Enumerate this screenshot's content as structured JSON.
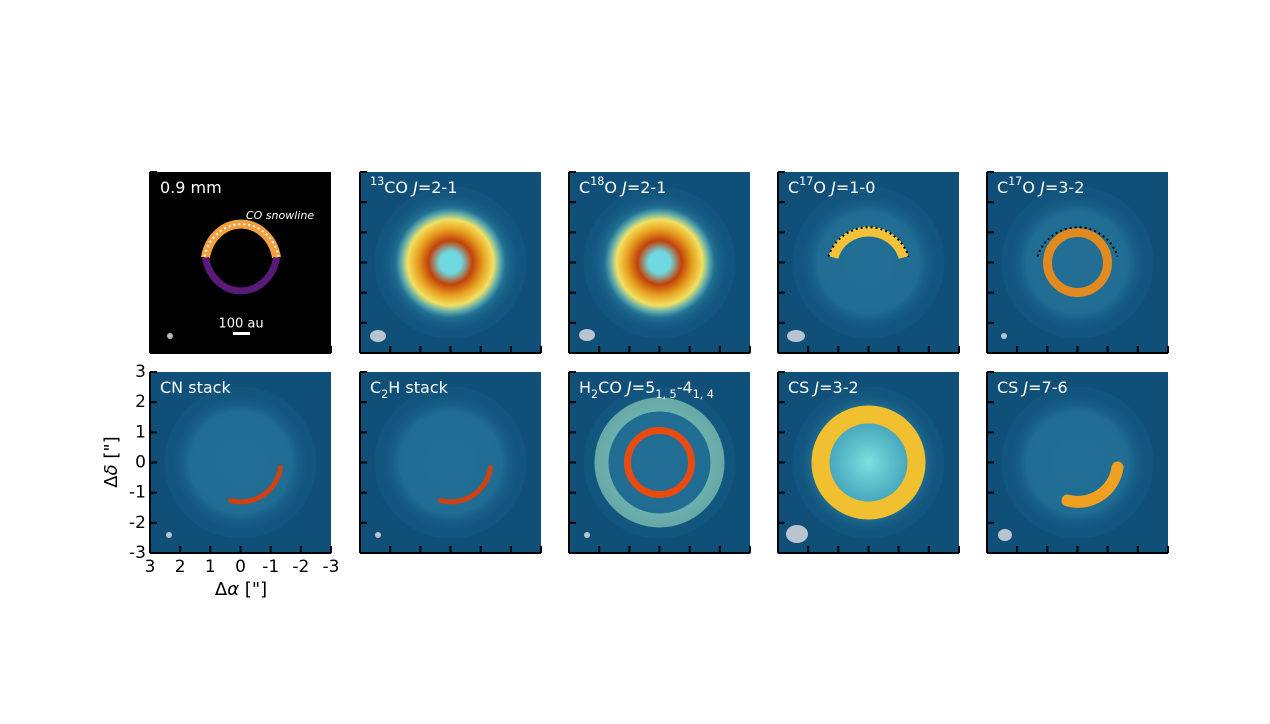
{
  "figure": {
    "panels": [
      {
        "label": [
          {
            "t": "0.9 mm"
          }
        ],
        "annotation": "CO snowline",
        "scale_bar": "100 au"
      },
      {
        "label": [
          {
            "sup": "13"
          },
          {
            "t": "CO "
          },
          {
            "i": "J"
          },
          {
            "t": "=2-1"
          }
        ]
      },
      {
        "label": [
          {
            "t": "C"
          },
          {
            "sup": "18"
          },
          {
            "t": "O "
          },
          {
            "i": "J"
          },
          {
            "t": "=2-1"
          }
        ]
      },
      {
        "label": [
          {
            "t": "C"
          },
          {
            "sup": "17"
          },
          {
            "t": "O "
          },
          {
            "i": "J"
          },
          {
            "t": "=1-0"
          }
        ]
      },
      {
        "label": [
          {
            "t": "C"
          },
          {
            "sup": "17"
          },
          {
            "t": "O "
          },
          {
            "i": "J"
          },
          {
            "t": "=3-2"
          }
        ]
      },
      {
        "label": [
          {
            "t": "CN stack"
          }
        ]
      },
      {
        "label": [
          {
            "t": "C"
          },
          {
            "sub": "2"
          },
          {
            "t": "H stack"
          }
        ]
      },
      {
        "label": [
          {
            "t": "H"
          },
          {
            "sub": "2"
          },
          {
            "t": "CO "
          },
          {
            "i": "J"
          },
          {
            "t": "=5"
          },
          {
            "sub": "1, 5"
          },
          {
            "t": "-4"
          },
          {
            "sub": "1, 4"
          }
        ]
      },
      {
        "label": [
          {
            "t": "CS "
          },
          {
            "i": "J"
          },
          {
            "t": "=3-2"
          }
        ]
      },
      {
        "label": [
          {
            "t": "CS "
          },
          {
            "i": "J"
          },
          {
            "t": "=7-6"
          }
        ]
      }
    ],
    "xlabel": [
      {
        "t": "Δ"
      },
      {
        "i": "α"
      },
      {
        "t": " [\"]"
      }
    ],
    "ylabel": [
      {
        "t": "Δ"
      },
      {
        "i": "δ"
      },
      {
        "t": " [\"]"
      }
    ],
    "xlim": [
      3,
      -3
    ],
    "ylim": [
      -3,
      3
    ],
    "xticks": [
      3,
      2,
      1,
      0,
      -1,
      -2,
      -3
    ],
    "yticks": [
      3,
      2,
      1,
      0,
      -1,
      -2,
      -3
    ]
  }
}
